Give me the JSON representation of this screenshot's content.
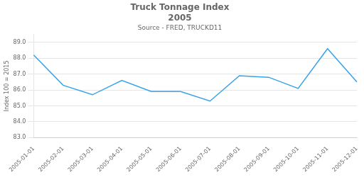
{
  "chart_data": {
    "type": "line",
    "title": [
      "Truck Tonnage Index",
      "2005"
    ],
    "subtitle": "Source - FRED, TRUCKD11",
    "ylabel": "Index 100 = 2015",
    "categories": [
      "2005-01-01",
      "2005-02-01",
      "2005-03-01",
      "2005-04-01",
      "2005-05-01",
      "2005-06-01",
      "2005-07-01",
      "2005-08-01",
      "2005-09-01",
      "2005-10-01",
      "2005-11-01",
      "2005-12-01"
    ],
    "values": [
      88.2,
      86.3,
      85.7,
      86.6,
      85.9,
      85.9,
      85.3,
      86.9,
      86.8,
      86.1,
      88.6,
      86.5
    ],
    "ylim": [
      83.0,
      89.5
    ],
    "yticks": [
      {
        "value": 83,
        "label": "83.0"
      },
      {
        "value": 84,
        "label": "84.0"
      },
      {
        "value": 85,
        "label": "85.0"
      },
      {
        "value": 86,
        "label": "86.0"
      },
      {
        "value": 87,
        "label": "87.0"
      },
      {
        "value": 88,
        "label": "88.0"
      },
      {
        "value": 89,
        "label": "89.0"
      }
    ],
    "grid": true
  }
}
